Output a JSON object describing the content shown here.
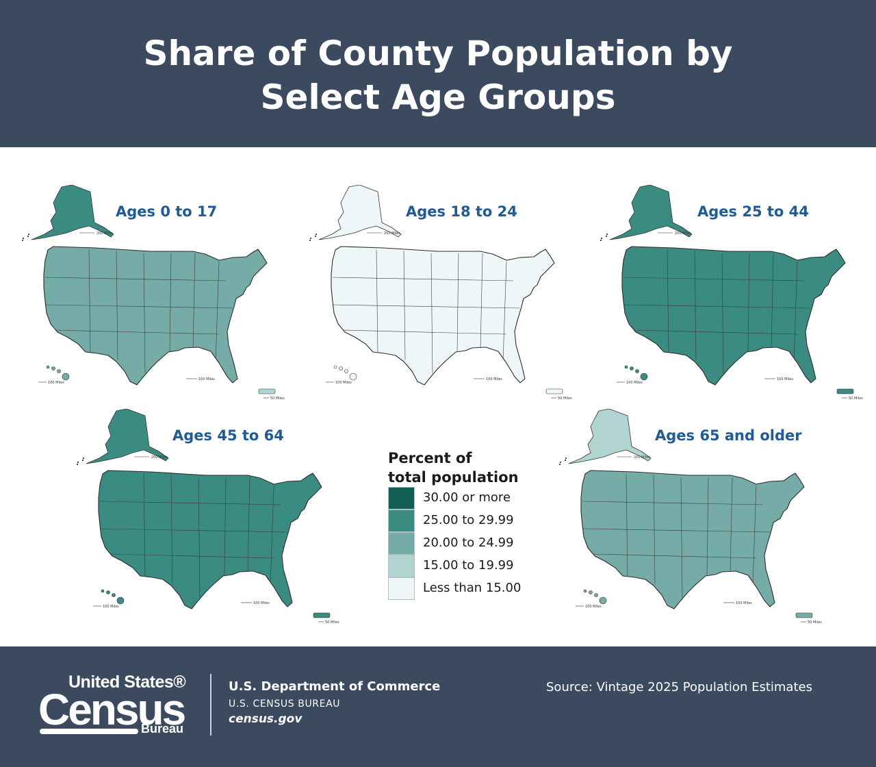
{
  "header": {
    "title_line1": "Share of County Population by",
    "title_line2": "Select Age Groups"
  },
  "colors": {
    "header_bg": "#3c4a5f",
    "title_text": "#1f5a99",
    "class_30_plus": "#145f54",
    "class_25_to_29_99": "#3a8b82",
    "class_20_to_24_99": "#76aca7",
    "class_15_to_19_99": "#b2d4d1",
    "class_under_15": "#eef6f7"
  },
  "panels": [
    {
      "id": "0-17",
      "title": "Ages 0 to 17",
      "dominant_class": "class_20_to_24_99",
      "alaska_class": "class_25_to_29_99",
      "hawaii_class": "class_20_to_24_99",
      "pr_class": "class_15_to_19_99"
    },
    {
      "id": "18-24",
      "title": "Ages 18 to 24",
      "dominant_class": "class_under_15",
      "alaska_class": "class_under_15",
      "hawaii_class": "class_under_15",
      "pr_class": "class_under_15"
    },
    {
      "id": "25-44",
      "title": "Ages 25 to 44",
      "dominant_class": "class_25_to_29_99",
      "alaska_class": "class_25_to_29_99",
      "hawaii_class": "class_25_to_29_99",
      "pr_class": "class_25_to_29_99"
    },
    {
      "id": "45-64",
      "title": "Ages 45 to 64",
      "dominant_class": "class_25_to_29_99",
      "alaska_class": "class_25_to_29_99",
      "hawaii_class": "class_25_to_29_99",
      "pr_class": "class_25_to_29_99"
    },
    {
      "id": "65+",
      "title": "Ages 65 and older",
      "dominant_class": "class_20_to_24_99",
      "alaska_class": "class_15_to_19_99",
      "hawaii_class": "class_20_to_24_99",
      "pr_class": "class_20_to_24_99"
    }
  ],
  "scale_bars": {
    "alaska": "200 Miles",
    "hawaii": "100 Miles",
    "conus": "100 Miles",
    "puerto_rico": "50 Miles"
  },
  "legend": {
    "title_line1": "Percent of",
    "title_line2": "total population",
    "items": [
      {
        "label": "30.00 or more",
        "color": "#145f54"
      },
      {
        "label": "25.00 to 29.99",
        "color": "#3a8b82"
      },
      {
        "label": "20.00 to 24.99",
        "color": "#76aca7"
      },
      {
        "label": "15.00 to 19.99",
        "color": "#b2d4d1"
      },
      {
        "label": "Less than 15.00",
        "color": "#eef6f7"
      }
    ]
  },
  "footer": {
    "logo_line1": "United States®",
    "logo_line2": "Census",
    "logo_line3": "Bureau",
    "department": "U.S. Department of Commerce",
    "bureau": "U.S. CENSUS BUREAU",
    "website": "census.gov",
    "source": "Source: Vintage 2025 Population Estimates"
  }
}
